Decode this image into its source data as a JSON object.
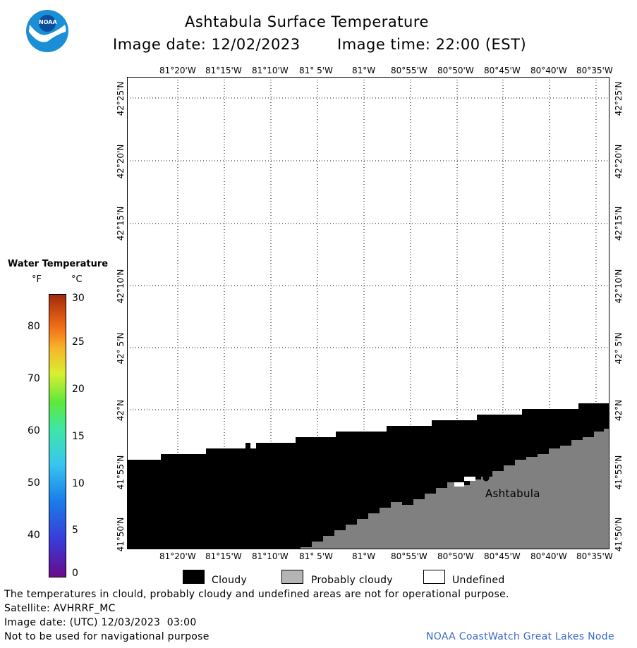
{
  "header": {
    "title": "Ashtabula Surface Temperature",
    "image_date_label": "Image date: 12/02/2023",
    "image_time_label": "Image time: 22:00 (EST)"
  },
  "logo": {
    "text": "NOAA"
  },
  "map": {
    "lon_ticks": [
      "81°20'W",
      "81°15'W",
      "81°10'W",
      "81° 5'W",
      "81°W",
      "80°55'W",
      "80°50'W",
      "80°45'W",
      "80°40'W",
      "80°35'W"
    ],
    "lat_ticks": [
      "42°25'N",
      "42°20'N",
      "42°15'N",
      "42°10'N",
      "42° 5'N",
      "42°N",
      "41°55'N",
      "41°50'N"
    ],
    "city_label": "Ashtabula",
    "colors": {
      "cloudy": "#000000",
      "probably_cloudy": "#808080",
      "undefined": "#ffffff"
    }
  },
  "colorbar": {
    "title": "Water Temperature",
    "unit_f": "°F",
    "unit_c": "°C",
    "f_ticks": [
      "80",
      "70",
      "60",
      "50",
      "40"
    ],
    "c_ticks": [
      "30",
      "25",
      "20",
      "15",
      "10",
      "5",
      "0"
    ]
  },
  "legend": {
    "cloudy": "Cloudy",
    "probably_cloudy": "Probably cloudy",
    "undefined": "Undefined"
  },
  "footer": {
    "disclaimer": "The temperatures in clould, probably cloudy and undefined areas are not for operational purpose.",
    "satellite": "Satellite: AVHRRF_MC",
    "image_date_utc": "Image date: (UTC) 12/03/2023  03:00",
    "nav_warning": "Not to be used for navigational purpose",
    "credit": "NOAA CoastWatch Great Lakes Node"
  }
}
